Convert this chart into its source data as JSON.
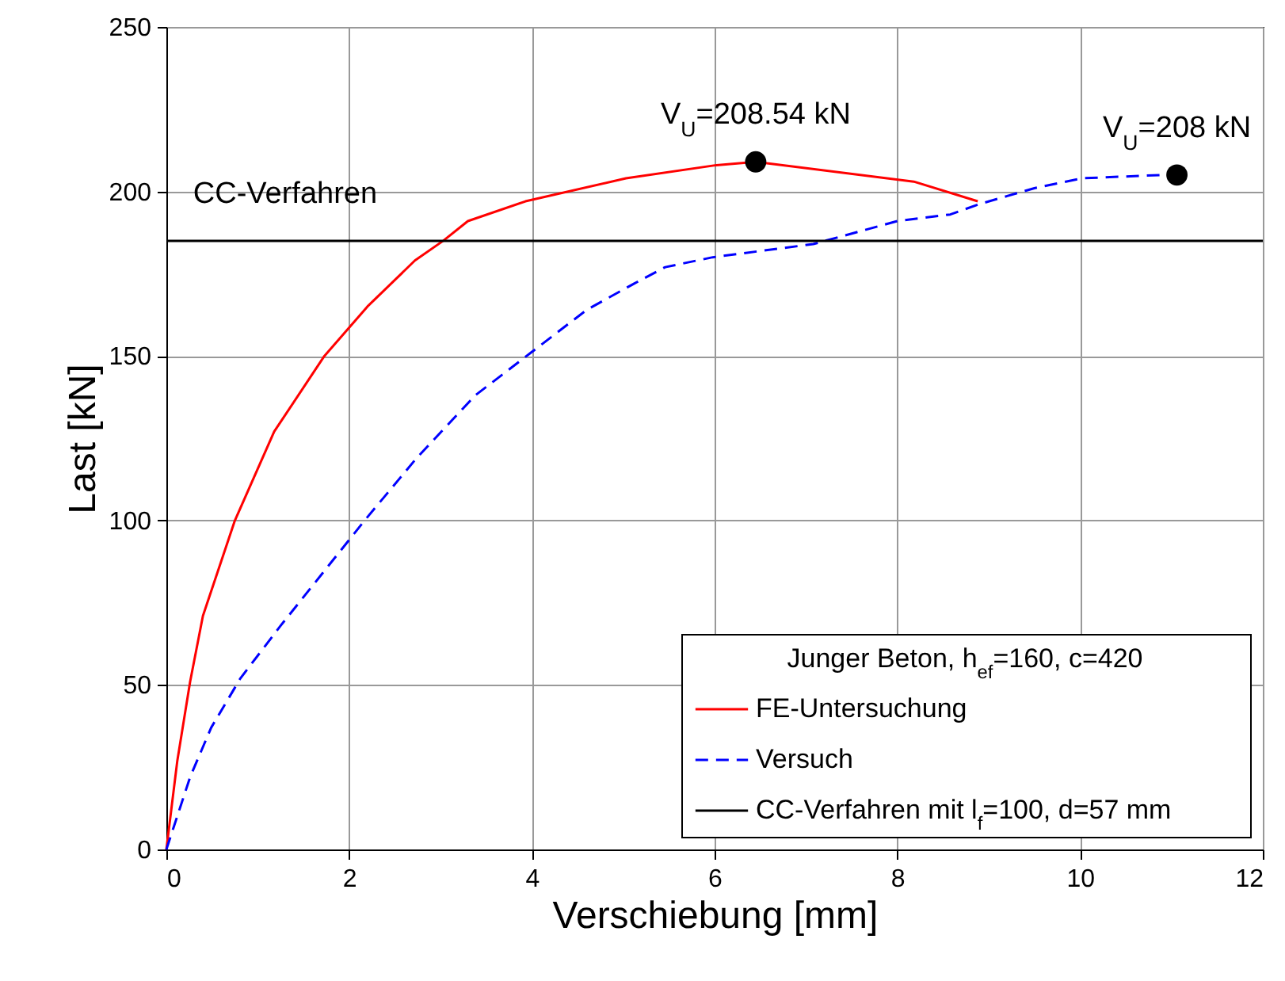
{
  "chart_data": {
    "type": "line",
    "xlabel": "Verschiebung [mm]",
    "ylabel": "Last [kN]",
    "legend_title": "Junger Beton, h$_{ef}$=160, c=420",
    "xlim": [
      0,
      12
    ],
    "xticks": [
      0,
      2,
      4,
      6,
      8,
      10,
      12
    ],
    "ylim": [
      0,
      250
    ],
    "yticks": [
      0,
      50,
      100,
      150,
      200,
      250
    ],
    "grid": true,
    "legend": "bottom right",
    "series": [
      {
        "name": "FE-Untersuchung",
        "color": "#ff0000",
        "line_style": "solid",
        "x": [
          0,
          0.12,
          0.26,
          0.4,
          0.75,
          1.18,
          1.73,
          2.2,
          2.72,
          3.03,
          3.3,
          3.93,
          5.03,
          6.02,
          6.45,
          8.18,
          8.88
        ],
        "values": [
          0,
          27,
          51,
          71,
          100,
          127,
          150,
          165,
          179,
          185,
          191,
          197,
          204,
          208,
          209,
          203,
          197
        ]
      },
      {
        "name": "Versuch",
        "color": "#0000ff",
        "line_style": "dashed",
        "x": [
          0,
          0.26,
          0.49,
          0.81,
          1.25,
          1.71,
          2.17,
          2.74,
          3.38,
          3.99,
          4.6,
          5.12,
          5.46,
          5.98,
          7.08,
          8.0,
          8.58,
          8.88,
          9.5,
          10.02,
          10.89
        ],
        "values": [
          0,
          22,
          37,
          52,
          68,
          84,
          100,
          119,
          138,
          151,
          164,
          172,
          177,
          180,
          184,
          191,
          193,
          196,
          201,
          204,
          205
        ]
      },
      {
        "name": "CC-Verfahren mit l$_{f}$=100, d=57 mm",
        "color": "#000000",
        "line_style": "solid",
        "x": [
          0,
          12
        ],
        "values": [
          185,
          185
        ]
      },
      {
        "type": "scatter",
        "marker": "circle",
        "color": "#000000",
        "x": [
          6.45,
          11.06
        ],
        "values": [
          209,
          205
        ]
      }
    ],
    "annotations": [
      {
        "text": "V$_{U}$=208.54 kN",
        "x": 6.45,
        "y": 209
      },
      {
        "text": "V$_{U}$=208 kN",
        "x": 11.06,
        "y": 205
      },
      {
        "text": "CC-Verfahren",
        "x": 1.3,
        "y": 185
      }
    ]
  }
}
